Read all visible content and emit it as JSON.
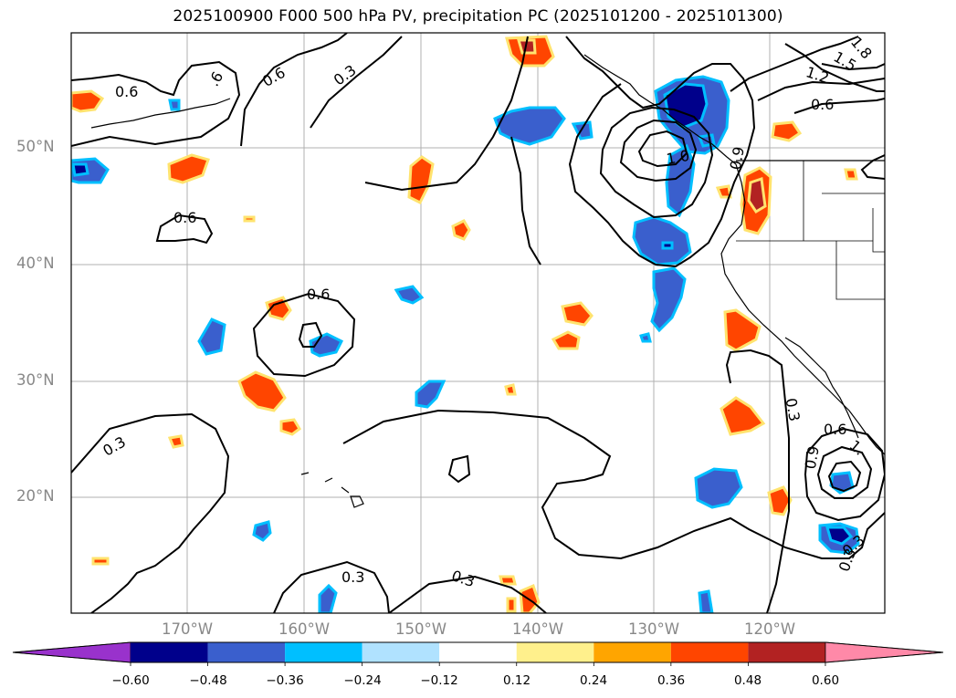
{
  "title": "2025100900 F000 500 hPa PV, precipitation PC (2025101200 - 2025101300)",
  "latitude_labels": [
    "50°N",
    "40°N",
    "30°N",
    "20°N"
  ],
  "longitude_labels": [
    "170°W",
    "160°W",
    "150°W",
    "140°W",
    "130°W",
    "120°W"
  ],
  "contour_labels": [
    "0.6",
    "0.6",
    ".6",
    "0.3",
    "0.6",
    "0.6",
    "1.2",
    "1.5",
    "1.8",
    "1.0",
    "0.9",
    "0.6",
    "0.3",
    "0.3",
    "0.3",
    "0.3",
    "0.6",
    "0.9",
    "1.",
    "0.3",
    "0.3"
  ],
  "colorbar": {
    "ticks": [
      "−0.60",
      "−0.48",
      "−0.36",
      "−0.24",
      "−0.12",
      "0.12",
      "0.24",
      "0.36",
      "0.48",
      "0.60"
    ],
    "colors": [
      "#9932cc",
      "#00008b",
      "#3a5fcd",
      "#00bfff",
      "#b0e2ff",
      "#ffffff",
      "#fff08c",
      "#ffa500",
      "#ff4500",
      "#b22222",
      "#ff89a8"
    ]
  },
  "colors": {
    "map_border": "#000000",
    "grid": "#b0b0b0",
    "contour": "#000000"
  }
}
